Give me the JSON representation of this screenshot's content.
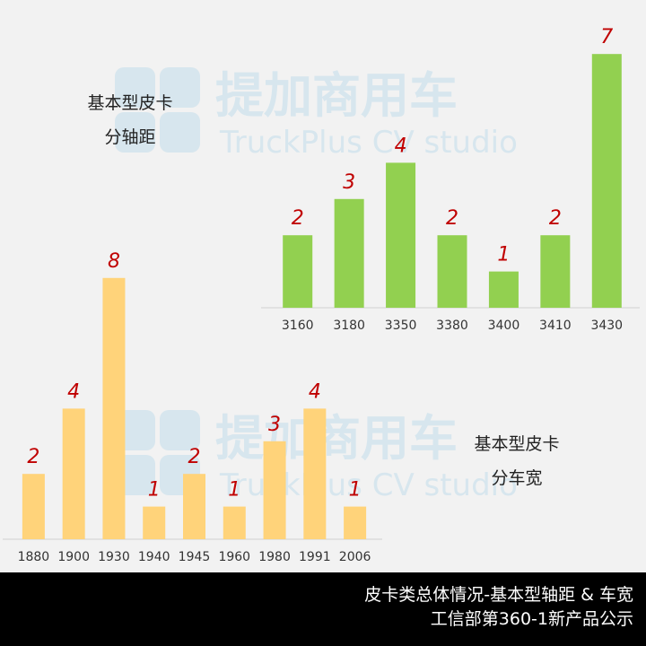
{
  "watermark": {
    "brand": "提加商用车",
    "sub": "TruckPlus CV studio"
  },
  "footer": {
    "line1": "皮卡类总体情况-基本型轴距 & 车宽",
    "line2": "工信部第360-1新产品公示"
  },
  "colors": {
    "wheelbase_bar": "#92d050",
    "width_bar": "#ffd37a",
    "value_label": "#c00000"
  },
  "chart_data": [
    {
      "id": "wheelbase",
      "type": "bar",
      "title_lines": [
        "基本型皮卡",
        "分轴距"
      ],
      "categories": [
        "3160",
        "3180",
        "3350",
        "3380",
        "3400",
        "3410",
        "3430"
      ],
      "values": [
        2,
        3,
        4,
        2,
        1,
        2,
        7
      ]
    },
    {
      "id": "width",
      "type": "bar",
      "title_lines": [
        "基本型皮卡",
        "分车宽"
      ],
      "categories": [
        "1880",
        "1900",
        "1930",
        "1940",
        "1945",
        "1960",
        "1980",
        "1991",
        "2006"
      ],
      "values": [
        2,
        4,
        8,
        1,
        2,
        1,
        3,
        4,
        1
      ]
    }
  ]
}
